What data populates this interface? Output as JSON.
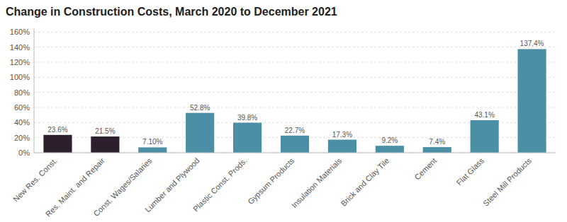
{
  "chart_data": {
    "type": "bar",
    "title": "Change in Construction Costs, March 2020 to December 2021",
    "categories": [
      "New Res. Const.",
      "Res. Maint. and Repair",
      "Const. Wages/Salaries",
      "Lumber and Plywood",
      "Plastic Const. Prods.",
      "Gypsum Products",
      "Insulation Materials",
      "Brick and Clay Tile",
      "Cement",
      "Flat Glass",
      "Steel Mill Products"
    ],
    "values": [
      23.6,
      21.5,
      7.1,
      52.8,
      39.8,
      22.7,
      17.3,
      9.2,
      7.4,
      43.1,
      137.4
    ],
    "value_labels": [
      "23.6%",
      "21.5%",
      "7.10%",
      "52.8%",
      "39.8%",
      "22.7%",
      "17.3%",
      "9.2%",
      "7.4%",
      "43.1%",
      "137.4%"
    ],
    "colors": [
      "#2d1f2e",
      "#2d1f2e",
      "#4a8fa6",
      "#4a8fa6",
      "#4a8fa6",
      "#4a8fa6",
      "#4a8fa6",
      "#4a8fa6",
      "#4a8fa6",
      "#4a8fa6",
      "#4a8fa6"
    ],
    "ylim": [
      0,
      165
    ],
    "yticks": [
      {
        "value": 0,
        "label": "0%"
      },
      {
        "value": 20,
        "label": "20%"
      },
      {
        "value": 40,
        "label": "40%"
      },
      {
        "value": 60,
        "label": "60%"
      },
      {
        "value": 80,
        "label": "80%"
      },
      {
        "value": 100,
        "label": "100%"
      },
      {
        "value": 120,
        "label": "120%"
      },
      {
        "value": 140,
        "label": "140%"
      },
      {
        "value": 160,
        "label": "160%"
      }
    ],
    "grid": true,
    "data_labels": true
  }
}
